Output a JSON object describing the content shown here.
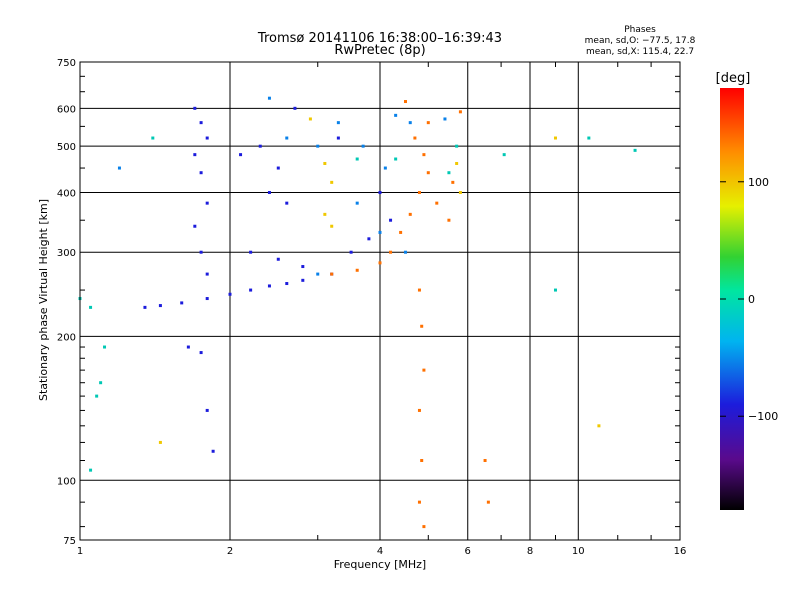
{
  "chart_data": {
    "type": "scatter",
    "title": "Tromsø 20141106 16:38:00–16:39:43",
    "subtitle": "RwPretec (8p)",
    "xlabel": "Frequency [MHz]",
    "ylabel": "Stationary phase Virtual Height [km]",
    "x_scale": "log",
    "y_scale": "log",
    "xlim": [
      1,
      16
    ],
    "ylim": [
      75,
      750
    ],
    "x_ticks": [
      1,
      2,
      4,
      6,
      8,
      10,
      16
    ],
    "x_ticks_text": [
      "1",
      "2",
      "4",
      "6",
      "8",
      "10",
      "16"
    ],
    "y_ticks": [
      75,
      100,
      200,
      300,
      400,
      500,
      600,
      750
    ],
    "y_ticks_text": [
      "75",
      "100",
      "200",
      "300",
      "400",
      "500",
      "600",
      "750"
    ],
    "grid": true,
    "phases": {
      "title": "Phases",
      "line_o": "mean, sd,O: −77.5, 17.8",
      "line_x": "mean, sd,X: 115.4, 22.7"
    },
    "colorbar": {
      "label": "[deg]",
      "range": [
        -180,
        180
      ],
      "ticks": [
        100,
        0,
        -100
      ],
      "ticks_text": [
        "100",
        "0",
        "−100"
      ],
      "colormap": "rainbow (black–purple–blue–cyan–green–yellow–orange–red)"
    },
    "series": [
      {
        "phase": -100,
        "points": [
          [
            1.35,
            230
          ],
          [
            1.45,
            232
          ],
          [
            1.6,
            235
          ],
          [
            1.8,
            240
          ],
          [
            2.0,
            245
          ],
          [
            2.2,
            250
          ],
          [
            2.4,
            255
          ],
          [
            2.6,
            258
          ],
          [
            2.8,
            262
          ],
          [
            1.7,
            600
          ],
          [
            1.75,
            560
          ],
          [
            1.8,
            520
          ],
          [
            1.7,
            480
          ],
          [
            1.75,
            440
          ],
          [
            1.8,
            380
          ],
          [
            1.7,
            340
          ],
          [
            1.75,
            300
          ],
          [
            1.8,
            270
          ],
          [
            2.1,
            480
          ],
          [
            2.3,
            500
          ],
          [
            2.5,
            450
          ],
          [
            2.4,
            400
          ],
          [
            2.6,
            380
          ],
          [
            2.2,
            300
          ],
          [
            2.5,
            290
          ],
          [
            2.8,
            280
          ],
          [
            3.2,
            270
          ],
          [
            3.5,
            300
          ],
          [
            3.8,
            320
          ],
          [
            4.0,
            400
          ],
          [
            4.2,
            350
          ],
          [
            1.65,
            190
          ],
          [
            1.75,
            185
          ],
          [
            1.8,
            140
          ],
          [
            1.85,
            115
          ],
          [
            2.7,
            600
          ],
          [
            3.3,
            520
          ]
        ]
      },
      {
        "phase": -60,
        "points": [
          [
            2.4,
            630
          ],
          [
            2.6,
            520
          ],
          [
            3.0,
            500
          ],
          [
            3.3,
            560
          ],
          [
            3.7,
            500
          ],
          [
            4.1,
            450
          ],
          [
            4.3,
            580
          ],
          [
            4.6,
            560
          ],
          [
            5.4,
            570
          ],
          [
            1.2,
            450
          ],
          [
            3.0,
            270
          ],
          [
            3.6,
            380
          ],
          [
            4.0,
            330
          ],
          [
            4.5,
            300
          ]
        ]
      },
      {
        "phase": -20,
        "points": [
          [
            1.0,
            240
          ],
          [
            1.05,
            230
          ],
          [
            1.1,
            160
          ],
          [
            1.08,
            150
          ],
          [
            1.05,
            105
          ],
          [
            1.12,
            190
          ],
          [
            1.4,
            520
          ],
          [
            3.6,
            470
          ],
          [
            4.3,
            470
          ],
          [
            5.7,
            500
          ],
          [
            5.5,
            440
          ],
          [
            7.1,
            480
          ],
          [
            9.0,
            250
          ],
          [
            10.5,
            520
          ],
          [
            13.0,
            490
          ]
        ]
      },
      {
        "phase": 100,
        "points": [
          [
            3.1,
            460
          ],
          [
            3.2,
            420
          ],
          [
            3.1,
            360
          ],
          [
            3.2,
            340
          ],
          [
            2.9,
            570
          ],
          [
            5.8,
            400
          ],
          [
            5.7,
            460
          ],
          [
            1.45,
            120
          ],
          [
            9.0,
            520
          ],
          [
            11.0,
            130
          ]
        ]
      },
      {
        "phase": 140,
        "points": [
          [
            3.2,
            270
          ],
          [
            3.6,
            275
          ],
          [
            4.0,
            285
          ],
          [
            4.2,
            300
          ],
          [
            4.4,
            330
          ],
          [
            4.6,
            360
          ],
          [
            4.8,
            400
          ],
          [
            5.0,
            440
          ],
          [
            5.2,
            380
          ],
          [
            5.5,
            350
          ],
          [
            5.6,
            420
          ],
          [
            4.9,
            480
          ],
          [
            4.7,
            520
          ],
          [
            5.0,
            560
          ],
          [
            5.8,
            590
          ],
          [
            4.8,
            250
          ],
          [
            4.85,
            210
          ],
          [
            4.9,
            170
          ],
          [
            4.8,
            140
          ],
          [
            4.85,
            110
          ],
          [
            4.8,
            90
          ],
          [
            4.9,
            80
          ],
          [
            4.5,
            620
          ],
          [
            6.5,
            110
          ],
          [
            6.6,
            90
          ]
        ]
      }
    ]
  }
}
